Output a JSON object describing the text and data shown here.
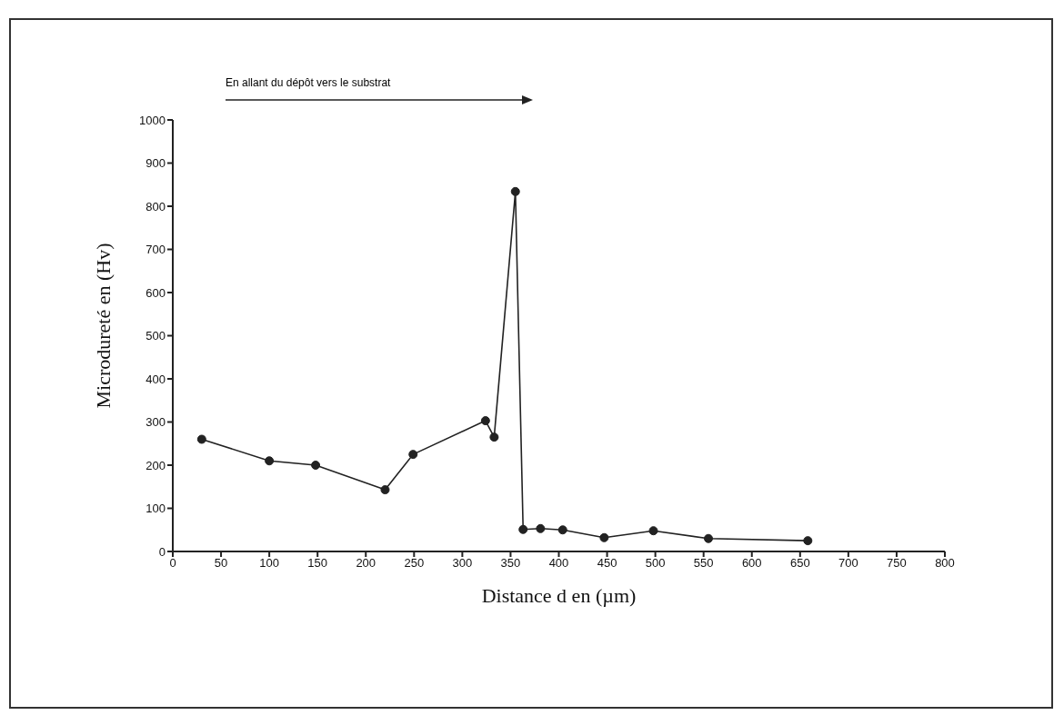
{
  "chart_data": {
    "type": "line",
    "xlabel": "Distance d en (µm)",
    "ylabel": "Microdureté en (Hv)",
    "annotations": [
      "En allant du dépôt vers le substrat"
    ],
    "x": [
      30,
      100,
      148,
      220,
      249,
      324,
      333,
      355,
      363,
      381,
      404,
      447,
      498,
      555,
      658
    ],
    "series": [
      {
        "color": "#222222",
        "values": [
          260,
          210,
          200,
          143,
          225,
          303,
          265,
          834,
          51,
          53,
          50,
          32,
          48,
          30,
          25
        ]
      }
    ],
    "xlim": [
      0,
      800
    ],
    "xticks": [
      0,
      50,
      100,
      150,
      200,
      250,
      300,
      350,
      400,
      450,
      500,
      550,
      600,
      650,
      700,
      750,
      800
    ],
    "ylim": [
      0,
      1000
    ],
    "yticks": [
      0,
      100,
      200,
      300,
      400,
      500,
      600,
      700,
      800,
      900,
      1000
    ],
    "grid": false,
    "legend": false,
    "marker": "circle",
    "line_style": "solid"
  }
}
